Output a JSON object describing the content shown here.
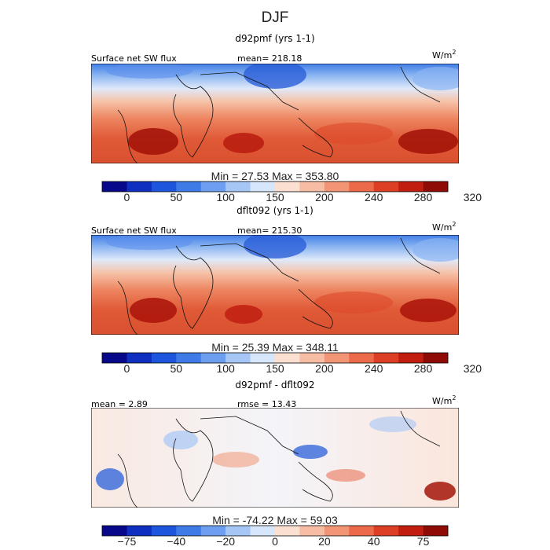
{
  "chart_data": {
    "type": "heatmap",
    "title": "DJF",
    "panels": [
      {
        "subtitle": "d92pmf (yrs 1-1)",
        "field_label": "Surface net SW flux",
        "mean_text": "mean= 218.18",
        "units": "W/m",
        "units_exp": "2",
        "min_max_text": "Min =  27.53  Max = 353.80",
        "palette": [
          "#08088a",
          "#0e2fbf",
          "#1d55dd",
          "#3e7be6",
          "#6d9ff0",
          "#a6c6f6",
          "#d6e6fb",
          "#fbe0d2",
          "#f7bca4",
          "#f19574",
          "#ea6a4a",
          "#dd3f25",
          "#c21e10",
          "#8f0b06"
        ],
        "colorbar_ticks": [
          "0",
          "50",
          "100",
          "150",
          "200",
          "240",
          "280",
          "320"
        ]
      },
      {
        "subtitle": "dflt092 (yrs 1-1)",
        "field_label": "Surface net SW flux",
        "mean_text": "mean= 215.30",
        "units": "W/m",
        "units_exp": "2",
        "min_max_text": "Min =  25.39  Max = 348.11",
        "palette": [
          "#08088a",
          "#0e2fbf",
          "#1d55dd",
          "#3e7be6",
          "#6d9ff0",
          "#a6c6f6",
          "#d6e6fb",
          "#fbe0d2",
          "#f7bca4",
          "#f19574",
          "#ea6a4a",
          "#dd3f25",
          "#c21e10",
          "#8f0b06"
        ],
        "colorbar_ticks": [
          "0",
          "50",
          "100",
          "150",
          "200",
          "240",
          "280",
          "320"
        ]
      },
      {
        "subtitle": "d92pmf - dflt092",
        "mean_text": "mean =   2.89",
        "rmse_text": "rmse =  13.43",
        "units": "W/m",
        "units_exp": "2",
        "min_max_text": "Min = -74.22  Max =  59.03",
        "palette": [
          "#08088a",
          "#0e2fbf",
          "#1d55dd",
          "#3e7be6",
          "#6d9ff0",
          "#a6c6f6",
          "#d6e6fb",
          "#fbe0d2",
          "#f7bca4",
          "#f19574",
          "#ea6a4a",
          "#dd3f25",
          "#c21e10",
          "#8f0b06"
        ],
        "colorbar_ticks": [
          "−75",
          "−40",
          "−20",
          "0",
          "20",
          "40",
          "75"
        ]
      }
    ]
  }
}
